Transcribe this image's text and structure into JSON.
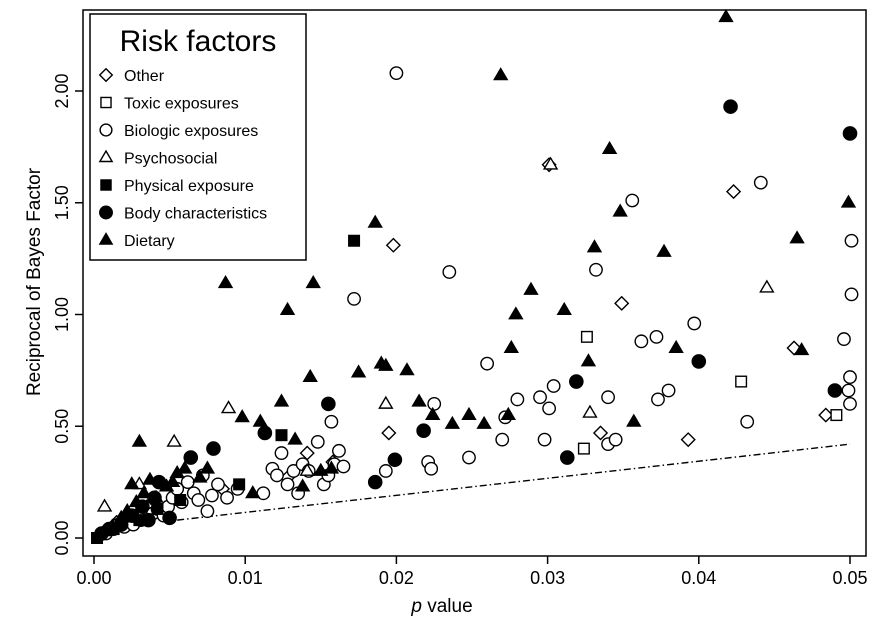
{
  "chart_data": {
    "type": "scatter",
    "xlabel_italic": "p",
    "xlabel_rest": " value",
    "ylabel": "Reciprocal of Bayes Factor",
    "xlim": [
      0,
      0.05
    ],
    "ylim": [
      0,
      2.3
    ],
    "xticks": [
      0.0,
      0.01,
      0.02,
      0.03,
      0.04,
      0.05
    ],
    "xtick_labels": [
      "0.00",
      "0.01",
      "0.02",
      "0.03",
      "0.04",
      "0.05"
    ],
    "yticks": [
      0.0,
      0.5,
      1.0,
      1.5,
      2.0
    ],
    "ytick_labels": [
      "0.00",
      "0.50",
      "1.00",
      "1.50",
      "2.00"
    ],
    "grid": false,
    "legend": {
      "title": "Risk factors",
      "placement": "top-left",
      "entries": [
        "Other",
        "Toxic exposures",
        "Biologic exposures",
        "Psychosocial",
        "Physical exposure",
        "Body characteristics",
        "Dietary"
      ]
    },
    "reference_line": {
      "style": "dash-dot",
      "points": [
        [
          0.0055,
          0.08
        ],
        [
          0.05,
          0.42
        ]
      ]
    },
    "series": [
      {
        "name": "Other",
        "marker": "open-diamond",
        "points": [
          [
            0.0007,
            0.03
          ],
          [
            0.0015,
            0.07
          ],
          [
            0.0035,
            0.14
          ],
          [
            0.0085,
            0.22
          ],
          [
            0.0128,
            0.27
          ],
          [
            0.0141,
            0.38
          ],
          [
            0.0158,
            0.34
          ],
          [
            0.0198,
            1.31
          ],
          [
            0.0195,
            0.47
          ],
          [
            0.0301,
            1.67
          ],
          [
            0.0335,
            0.47
          ],
          [
            0.0349,
            1.05
          ],
          [
            0.0393,
            0.44
          ],
          [
            0.0423,
            1.55
          ],
          [
            0.0463,
            0.85
          ],
          [
            0.0484,
            0.55
          ]
        ]
      },
      {
        "name": "Toxic exposures",
        "marker": "open-square",
        "points": [
          [
            0.0324,
            0.4
          ],
          [
            0.0326,
            0.9
          ],
          [
            0.0428,
            0.7
          ],
          [
            0.0491,
            0.55
          ]
        ]
      },
      {
        "name": "Biologic exposures",
        "marker": "open-circle",
        "points": [
          [
            0.0008,
            0.02
          ],
          [
            0.0013,
            0.04
          ],
          [
            0.0016,
            0.06
          ],
          [
            0.002,
            0.05
          ],
          [
            0.0023,
            0.08
          ],
          [
            0.0026,
            0.06
          ],
          [
            0.0028,
            0.1
          ],
          [
            0.0031,
            0.08
          ],
          [
            0.0033,
            0.12
          ],
          [
            0.0036,
            0.09
          ],
          [
            0.0039,
            0.11
          ],
          [
            0.0042,
            0.13
          ],
          [
            0.0046,
            0.1
          ],
          [
            0.0049,
            0.14
          ],
          [
            0.0052,
            0.18
          ],
          [
            0.0055,
            0.22
          ],
          [
            0.0058,
            0.16
          ],
          [
            0.0062,
            0.25
          ],
          [
            0.0066,
            0.2
          ],
          [
            0.0069,
            0.17
          ],
          [
            0.0072,
            0.28
          ],
          [
            0.0075,
            0.12
          ],
          [
            0.0078,
            0.19
          ],
          [
            0.0082,
            0.24
          ],
          [
            0.0088,
            0.18
          ],
          [
            0.0095,
            0.22
          ],
          [
            0.0112,
            0.2
          ],
          [
            0.0118,
            0.31
          ],
          [
            0.0121,
            0.28
          ],
          [
            0.0124,
            0.38
          ],
          [
            0.0128,
            0.24
          ],
          [
            0.0132,
            0.3
          ],
          [
            0.0135,
            0.2
          ],
          [
            0.0138,
            0.33
          ],
          [
            0.0142,
            0.3
          ],
          [
            0.0148,
            0.43
          ],
          [
            0.0152,
            0.24
          ],
          [
            0.0155,
            0.28
          ],
          [
            0.0157,
            0.52
          ],
          [
            0.0159,
            0.33
          ],
          [
            0.0162,
            0.39
          ],
          [
            0.0165,
            0.32
          ],
          [
            0.0172,
            1.07
          ],
          [
            0.0193,
            0.3
          ],
          [
            0.02,
            2.08
          ],
          [
            0.0221,
            0.34
          ],
          [
            0.0223,
            0.31
          ],
          [
            0.0225,
            0.6
          ],
          [
            0.0235,
            1.19
          ],
          [
            0.0248,
            0.36
          ],
          [
            0.026,
            0.78
          ],
          [
            0.027,
            0.44
          ],
          [
            0.0272,
            0.54
          ],
          [
            0.028,
            0.62
          ],
          [
            0.0295,
            0.63
          ],
          [
            0.0298,
            0.44
          ],
          [
            0.0301,
            0.58
          ],
          [
            0.0304,
            0.68
          ],
          [
            0.0332,
            1.2
          ],
          [
            0.034,
            0.63
          ],
          [
            0.034,
            0.42
          ],
          [
            0.0345,
            0.44
          ],
          [
            0.0356,
            1.51
          ],
          [
            0.0362,
            0.88
          ],
          [
            0.0372,
            0.9
          ],
          [
            0.0373,
            0.62
          ],
          [
            0.038,
            0.66
          ],
          [
            0.0397,
            0.96
          ],
          [
            0.0432,
            0.52
          ],
          [
            0.0441,
            1.59
          ],
          [
            0.0496,
            0.89
          ],
          [
            0.0499,
            0.66
          ],
          [
            0.05,
            0.72
          ],
          [
            0.05,
            0.6
          ],
          [
            0.0501,
            1.09
          ],
          [
            0.0501,
            1.33
          ]
        ]
      },
      {
        "name": "Psychosocial",
        "marker": "open-triangle",
        "points": [
          [
            0.0007,
            0.14
          ],
          [
            0.003,
            0.24
          ],
          [
            0.0053,
            0.43
          ],
          [
            0.0089,
            0.58
          ],
          [
            0.0141,
            0.3
          ],
          [
            0.0193,
            0.6
          ],
          [
            0.0302,
            1.67
          ],
          [
            0.0328,
            0.56
          ],
          [
            0.0445,
            1.12
          ]
        ]
      },
      {
        "name": "Physical exposure",
        "marker": "filled-square",
        "points": [
          [
            0.0002,
            0.0
          ],
          [
            0.0013,
            0.04
          ],
          [
            0.003,
            0.08
          ],
          [
            0.0042,
            0.13
          ],
          [
            0.0057,
            0.17
          ],
          [
            0.0096,
            0.24
          ],
          [
            0.0124,
            0.46
          ],
          [
            0.0172,
            1.33
          ]
        ]
      },
      {
        "name": "Body characteristics",
        "marker": "filled-circle",
        "points": [
          [
            0.0005,
            0.02
          ],
          [
            0.001,
            0.04
          ],
          [
            0.0018,
            0.06
          ],
          [
            0.0025,
            0.1
          ],
          [
            0.0032,
            0.14
          ],
          [
            0.0036,
            0.08
          ],
          [
            0.004,
            0.18
          ],
          [
            0.0043,
            0.25
          ],
          [
            0.005,
            0.09
          ],
          [
            0.0064,
            0.36
          ],
          [
            0.0079,
            0.4
          ],
          [
            0.0113,
            0.47
          ],
          [
            0.0155,
            0.6
          ],
          [
            0.0186,
            0.25
          ],
          [
            0.0199,
            0.35
          ],
          [
            0.0218,
            0.48
          ],
          [
            0.0313,
            0.36
          ],
          [
            0.0319,
            0.7
          ],
          [
            0.04,
            0.79
          ],
          [
            0.0421,
            1.93
          ],
          [
            0.049,
            0.66
          ],
          [
            0.05,
            1.81
          ]
        ]
      },
      {
        "name": "Dietary",
        "marker": "filled-triangle",
        "points": [
          [
            0.0012,
            0.05
          ],
          [
            0.0018,
            0.09
          ],
          [
            0.0022,
            0.12
          ],
          [
            0.0025,
            0.24
          ],
          [
            0.0028,
            0.16
          ],
          [
            0.003,
            0.43
          ],
          [
            0.0033,
            0.2
          ],
          [
            0.0037,
            0.26
          ],
          [
            0.0041,
            0.18
          ],
          [
            0.0048,
            0.23
          ],
          [
            0.0052,
            0.25
          ],
          [
            0.0055,
            0.29
          ],
          [
            0.006,
            0.31
          ],
          [
            0.007,
            0.27
          ],
          [
            0.0075,
            0.31
          ],
          [
            0.0087,
            1.14
          ],
          [
            0.0098,
            0.54
          ],
          [
            0.0105,
            0.2
          ],
          [
            0.011,
            0.52
          ],
          [
            0.0124,
            0.61
          ],
          [
            0.0128,
            1.02
          ],
          [
            0.0133,
            0.44
          ],
          [
            0.0138,
            0.23
          ],
          [
            0.0143,
            0.72
          ],
          [
            0.0145,
            1.14
          ],
          [
            0.015,
            0.3
          ],
          [
            0.0157,
            0.31
          ],
          [
            0.0175,
            0.74
          ],
          [
            0.0186,
            1.41
          ],
          [
            0.019,
            0.78
          ],
          [
            0.0193,
            0.77
          ],
          [
            0.0207,
            0.75
          ],
          [
            0.0215,
            0.61
          ],
          [
            0.0224,
            0.55
          ],
          [
            0.0237,
            0.51
          ],
          [
            0.0248,
            0.55
          ],
          [
            0.0258,
            0.51
          ],
          [
            0.0269,
            2.07
          ],
          [
            0.0274,
            0.55
          ],
          [
            0.0276,
            0.85
          ],
          [
            0.0279,
            1.0
          ],
          [
            0.0289,
            1.11
          ],
          [
            0.0311,
            1.02
          ],
          [
            0.0327,
            0.79
          ],
          [
            0.0331,
            1.3
          ],
          [
            0.0341,
            1.74
          ],
          [
            0.0348,
            1.46
          ],
          [
            0.0357,
            0.52
          ],
          [
            0.0377,
            1.28
          ],
          [
            0.0385,
            0.85
          ],
          [
            0.0418,
            2.33
          ],
          [
            0.0465,
            1.34
          ],
          [
            0.0468,
            0.84
          ],
          [
            0.0499,
            1.5
          ]
        ]
      }
    ]
  }
}
